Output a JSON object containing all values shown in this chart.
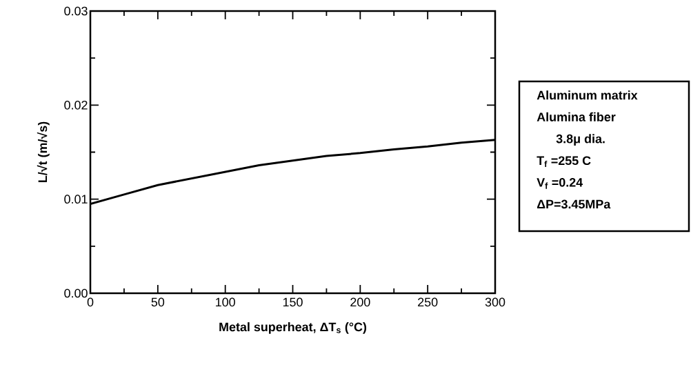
{
  "chart_data": {
    "type": "line",
    "xlabel": "Metal superheat, ΔT$_{s}$ (°C)",
    "ylabel": "L/√t      (m/√s)",
    "x": [
      0,
      25,
      50,
      75,
      100,
      125,
      150,
      175,
      200,
      225,
      250,
      275,
      300
    ],
    "series": [
      {
        "color": "#000000",
        "values": [
          0.0095,
          0.0105,
          0.0115,
          0.0122,
          0.0129,
          0.0136,
          0.0141,
          0.0146,
          0.0149,
          0.0153,
          0.0156,
          0.016,
          0.0163
        ]
      }
    ],
    "xlim": [
      0,
      300
    ],
    "ylim": [
      0,
      0.03
    ],
    "xticks": [
      0,
      {
        "value": 25,
        "label": null
      },
      50,
      {
        "value": 75,
        "label": null
      },
      100,
      {
        "value": 125,
        "label": null
      },
      150,
      {
        "value": 175,
        "label": null
      },
      200,
      {
        "value": 225,
        "label": null
      },
      250,
      {
        "value": 275,
        "label": null
      },
      300
    ],
    "yticks": [
      {
        "value": 0,
        "label": "0.00"
      },
      {
        "value": 0.005,
        "label": null
      },
      {
        "value": 0.01,
        "label": "0.01"
      },
      {
        "value": 0.015,
        "label": null
      },
      {
        "value": 0.02,
        "label": "0.02"
      },
      {
        "value": 0.025,
        "label": null
      },
      {
        "value": 0.03,
        "label": "0.03"
      }
    ],
    "grid": false,
    "marker": "none",
    "line_style": "solid",
    "annotations": [
      "Aluminum matrix",
      "Alumina fiber",
      "3.8μ dia.",
      "T$_{f}$ =255 C",
      "V$_{f}$ =0.24",
      "ΔP=3.45MPa"
    ]
  }
}
